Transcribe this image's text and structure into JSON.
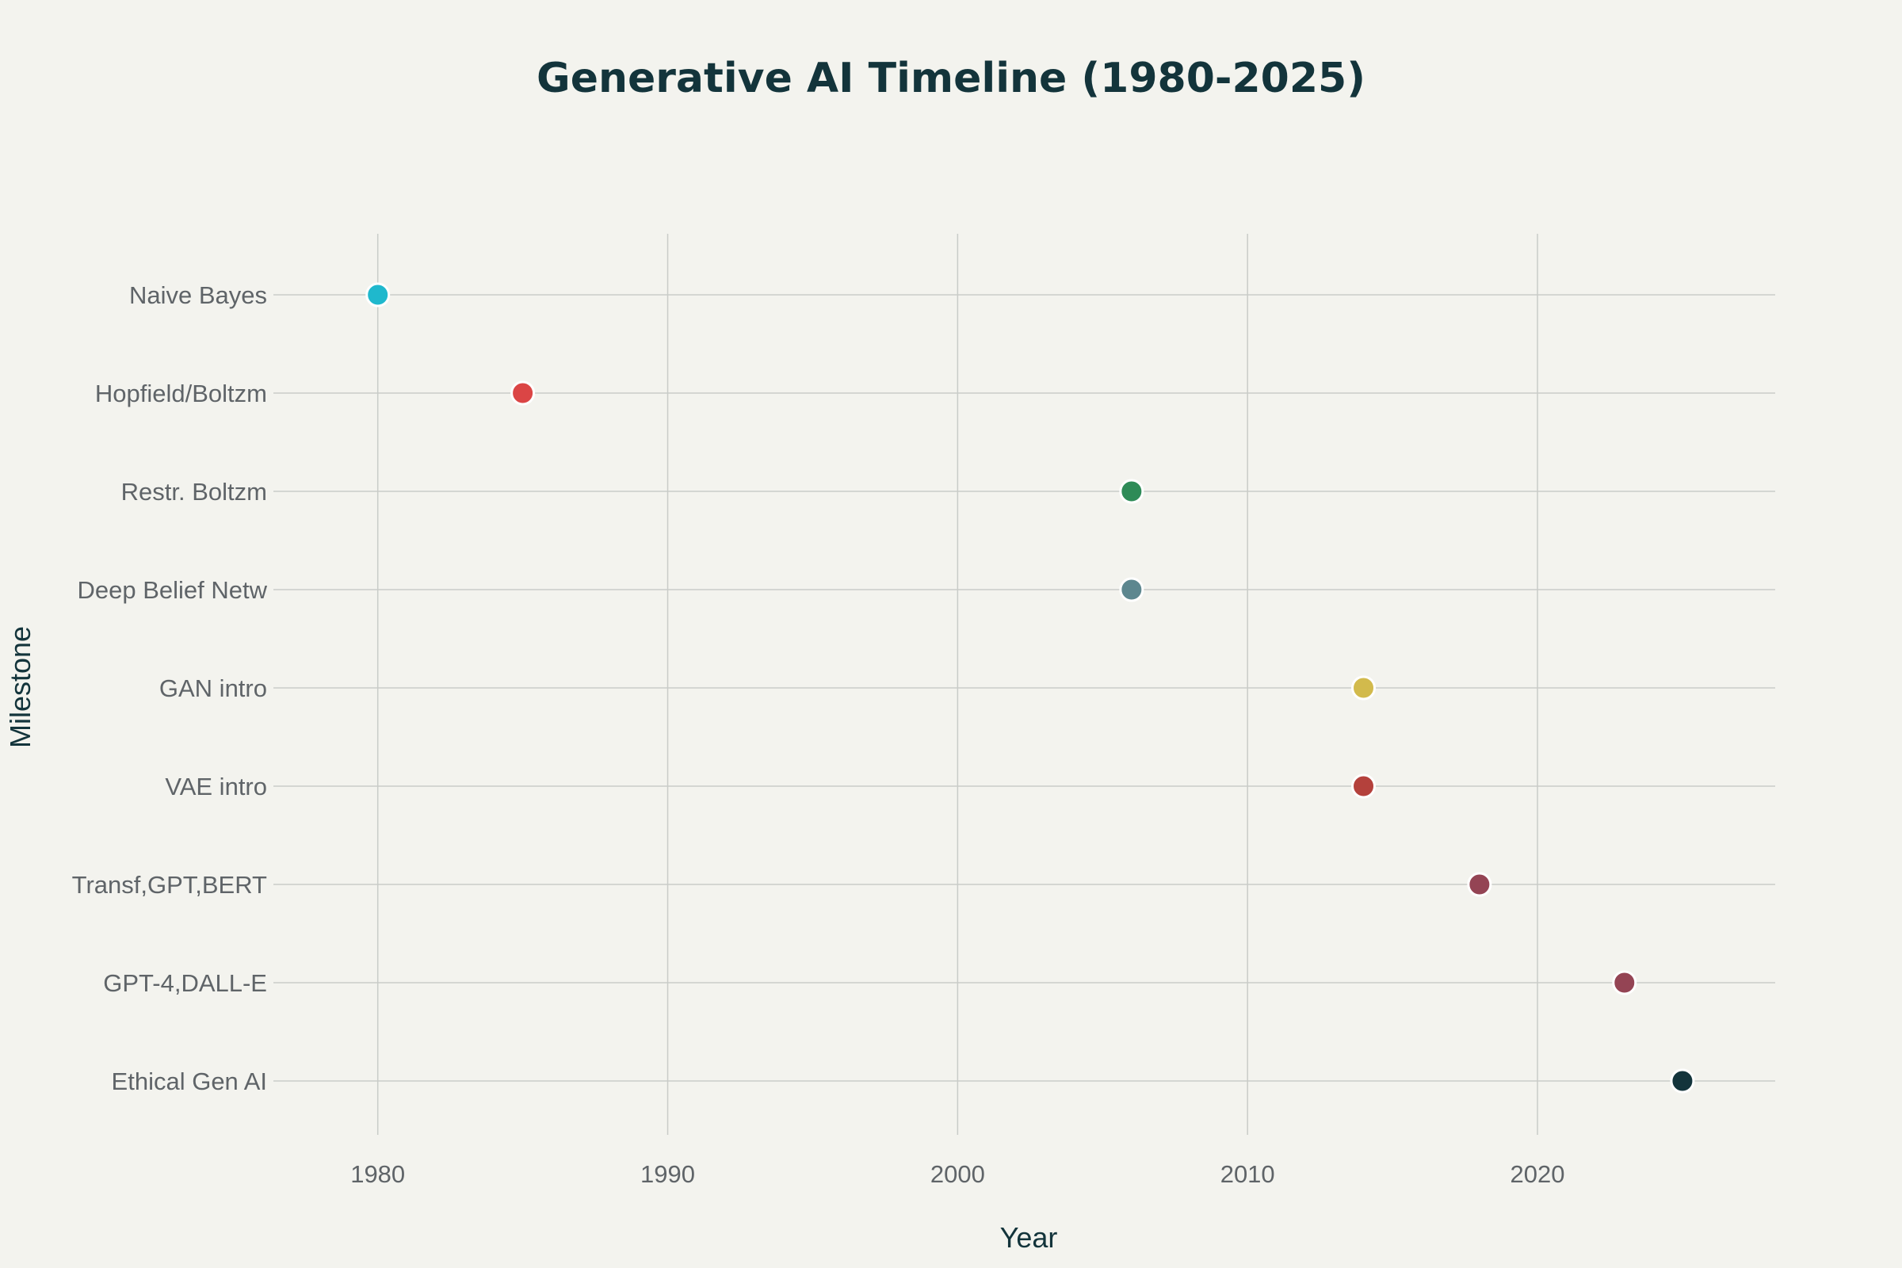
{
  "chart_data": {
    "type": "scatter",
    "title": "Generative AI Timeline (1980-2025)",
    "xlabel": "Year",
    "ylabel": "Milestone",
    "xlim": [
      1976.4,
      2028.2
    ],
    "xticks": [
      1980,
      1990,
      2000,
      2010,
      2020
    ],
    "grid": true,
    "categories": [
      "Naive Bayes",
      "Hopfield/Boltzm",
      "Restr. Boltzm",
      "Deep Belief Netw",
      "GAN intro",
      "VAE intro",
      "Transf,GPT,BERT",
      "GPT-4,DALL-E",
      "Ethical Gen AI"
    ],
    "points": [
      {
        "x": 1980,
        "y": "Naive Bayes",
        "color": "#1fb8cd"
      },
      {
        "x": 1985,
        "y": "Hopfield/Boltzm",
        "color": "#db4545"
      },
      {
        "x": 2006,
        "y": "Restr. Boltzm",
        "color": "#2e8b57"
      },
      {
        "x": 2006,
        "y": "Deep Belief Netw",
        "color": "#5d878f"
      },
      {
        "x": 2014,
        "y": "GAN intro",
        "color": "#d2ba4c"
      },
      {
        "x": 2014,
        "y": "VAE intro",
        "color": "#b4413c"
      },
      {
        "x": 2018,
        "y": "Transf,GPT,BERT",
        "color": "#944454"
      },
      {
        "x": 2023,
        "y": "GPT-4,DALL-E",
        "color": "#944454"
      },
      {
        "x": 2025,
        "y": "Ethical Gen AI",
        "color": "#13343b"
      }
    ]
  }
}
